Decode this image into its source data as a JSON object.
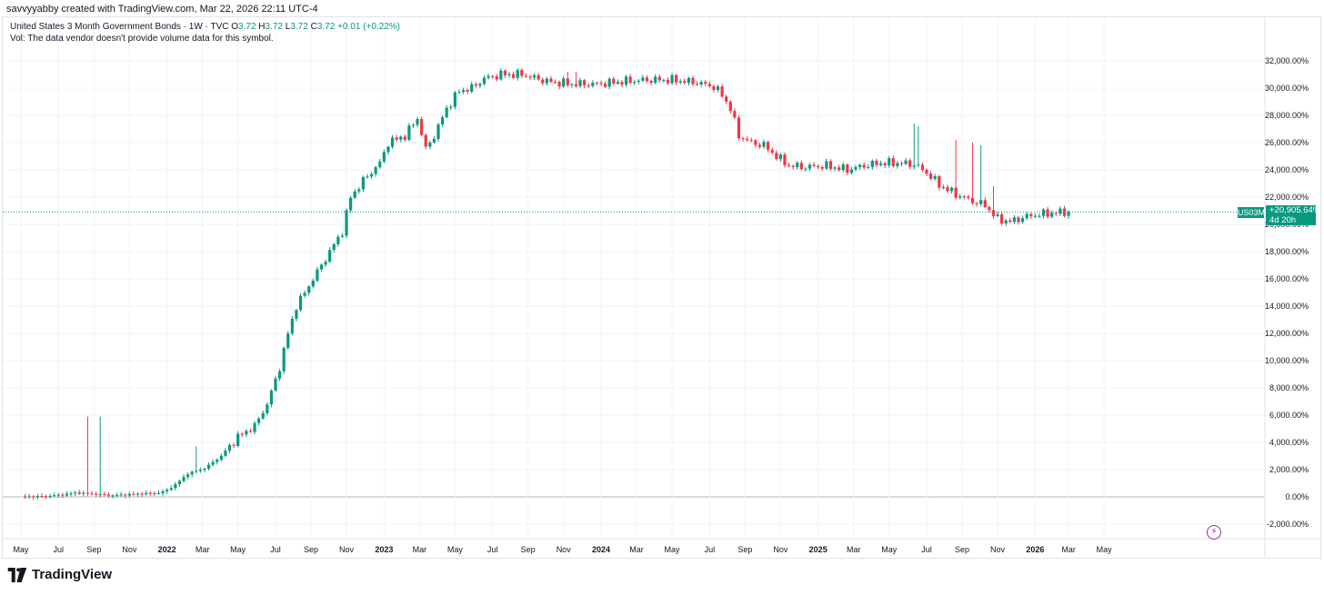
{
  "header": {
    "credit": "savvyyabby created with TradingView.com, Mar 22, 2026 22:11 UTC-4"
  },
  "legend": {
    "symbol_line": "United States 3 Month Government Bonds · 1W · TVC",
    "o_label": "O",
    "o_value": "3.72",
    "h_label": "H",
    "h_value": "3.72",
    "l_label": "L",
    "l_value": "3.72",
    "c_label": "C",
    "c_value": "3.72",
    "change": "+0.01 (+0.22%)",
    "volume_note": "Vol: The data vendor doesn't provide volume data for this symbol."
  },
  "price_tag": {
    "symbol": "US03M",
    "value": "+20,905.64%",
    "countdown": "4d 20h"
  },
  "brand": {
    "name": "TradingView"
  },
  "icons": {
    "bolt": "lightning-icon",
    "logo": "tradingview-logo-icon"
  },
  "colors": {
    "up": "#089981",
    "down": "#f23645",
    "grid": "#f0f3fa",
    "zero_line": "#b2b5be",
    "text": "#131722",
    "price_line": "#089981"
  },
  "chart_data": {
    "type": "candlestick",
    "title": "United States 3 Month Government Bonds",
    "ylabel": "",
    "y_scale": "percent",
    "ylim": [
      -2400,
      32800
    ],
    "y_ticks": [
      "32,000.00%",
      "30,000.00%",
      "28,000.00%",
      "26,000.00%",
      "24,000.00%",
      "22,000.00%",
      "20,000.00%",
      "18,000.00%",
      "16,000.00%",
      "14,000.00%",
      "12,000.00%",
      "10,000.00%",
      "8,000.00%",
      "6,000.00%",
      "4,000.00%",
      "2,000.00%",
      "0.00%",
      "-2,000.00%"
    ],
    "y_tick_values": [
      32000,
      30000,
      28000,
      26000,
      24000,
      22000,
      20000,
      18000,
      16000,
      14000,
      12000,
      10000,
      8000,
      6000,
      4000,
      2000,
      0,
      -2000
    ],
    "x_ticks": [
      "May",
      "Jul",
      "Sep",
      "Nov",
      "2022",
      "Mar",
      "May",
      "Jul",
      "Sep",
      "Nov",
      "2023",
      "Mar",
      "May",
      "Jul",
      "Sep",
      "Nov",
      "2024",
      "Mar",
      "May",
      "Jul",
      "Sep",
      "Nov",
      "2025",
      "Mar",
      "May",
      "Jul",
      "Sep",
      "Nov",
      "2026",
      "Mar",
      "May"
    ],
    "x_tick_bold": [
      false,
      false,
      false,
      false,
      true,
      false,
      false,
      false,
      false,
      false,
      true,
      false,
      false,
      false,
      false,
      false,
      true,
      false,
      false,
      false,
      false,
      false,
      true,
      false,
      false,
      false,
      false,
      false,
      true,
      false,
      false
    ],
    "x_tick_weeks": [
      0,
      9,
      17.5,
      26,
      35,
      43.5,
      52,
      61,
      69.5,
      78,
      87,
      95.5,
      104,
      113,
      121.5,
      130,
      139,
      147.5,
      156,
      165,
      173.5,
      182,
      191,
      199.5,
      208,
      217,
      225.5,
      234,
      243,
      251,
      259.5
    ],
    "last_value": 20905.64,
    "series": [
      {
        "name": "US03M",
        "ohlc_anchors": [
          [
            0,
            0
          ],
          [
            5,
            40
          ],
          [
            10,
            150
          ],
          [
            13,
            300
          ],
          [
            18,
            200
          ],
          [
            22,
            100
          ],
          [
            26,
            180
          ],
          [
            30,
            250
          ],
          [
            33,
            280
          ],
          [
            35,
            500
          ],
          [
            37,
            900
          ],
          [
            40,
            1700
          ],
          [
            44,
            2100
          ],
          [
            48,
            3000
          ],
          [
            52,
            4400
          ],
          [
            56,
            5200
          ],
          [
            59,
            6800
          ],
          [
            62,
            9500
          ],
          [
            64,
            12000
          ],
          [
            66,
            14000
          ],
          [
            69,
            15500
          ],
          [
            73,
            17500
          ],
          [
            77,
            19500
          ],
          [
            79,
            22000
          ],
          [
            82,
            23200
          ],
          [
            86,
            24500
          ],
          [
            88,
            26000
          ],
          [
            92,
            26500
          ],
          [
            95,
            27800
          ],
          [
            97,
            25500
          ],
          [
            99,
            26500
          ],
          [
            102,
            28500
          ],
          [
            105,
            29800
          ],
          [
            108,
            30000
          ],
          [
            111,
            30700
          ],
          [
            115,
            31000
          ],
          [
            120,
            31000
          ],
          [
            126,
            30500
          ],
          [
            132,
            30300
          ],
          [
            138,
            30300
          ],
          [
            145,
            30500
          ],
          [
            150,
            30600
          ],
          [
            156,
            30600
          ],
          [
            162,
            30400
          ],
          [
            166,
            30100
          ],
          [
            168,
            29500
          ],
          [
            170,
            28500
          ],
          [
            172,
            26500
          ],
          [
            175,
            26000
          ],
          [
            178,
            25800
          ],
          [
            181,
            25000
          ],
          [
            184,
            24300
          ],
          [
            188,
            24200
          ],
          [
            193,
            24300
          ],
          [
            198,
            24000
          ],
          [
            202,
            24300
          ],
          [
            206,
            24500
          ],
          [
            210,
            24500
          ],
          [
            214,
            24400
          ],
          [
            217,
            23800
          ],
          [
            220,
            22900
          ],
          [
            224,
            22200
          ],
          [
            228,
            21700
          ],
          [
            231,
            21400
          ],
          [
            234,
            20400
          ],
          [
            237,
            20200
          ],
          [
            240,
            20500
          ],
          [
            243,
            20700
          ],
          [
            246,
            20800
          ],
          [
            250,
            20900
          ],
          [
            251,
            20905.64
          ]
        ]
      }
    ]
  }
}
